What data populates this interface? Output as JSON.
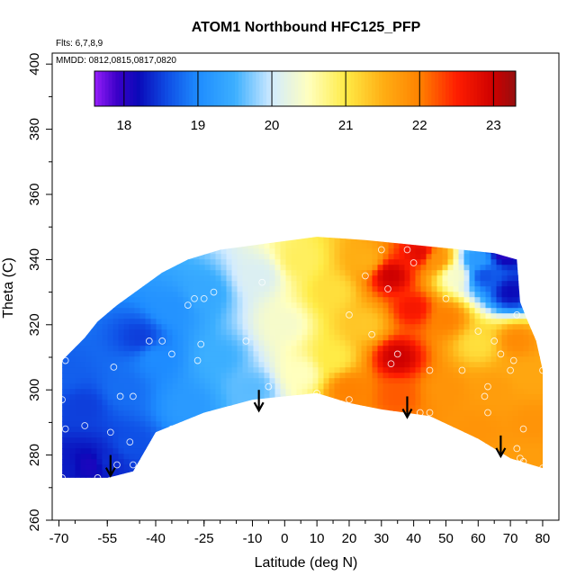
{
  "chart_data": {
    "type": "heatmap",
    "title": "ATOM1 Northbound HFC125_PFP",
    "notes": [
      "Flts: 6,7,8,9",
      "MMDD: 0812,0815,0817,0820"
    ],
    "xlabel": "Latitude (deg N)",
    "ylabel": "Theta (C)",
    "xlim": [
      -70,
      80
    ],
    "ylim": [
      260,
      405
    ],
    "x_ticks": [
      -70,
      -55,
      -40,
      -25,
      -10,
      0,
      10,
      20,
      30,
      40,
      50,
      60,
      70,
      80
    ],
    "x_tick_labels": [
      "-70",
      "-55",
      "-40",
      "-25",
      "-10",
      "0",
      "10",
      "20",
      "30",
      "40",
      "50",
      "60",
      "70",
      "80"
    ],
    "y_ticks": [
      260,
      280,
      300,
      320,
      340,
      360,
      380,
      400
    ],
    "y_tick_labels": [
      "260",
      "280",
      "300",
      "320",
      "340",
      "360",
      "380",
      "400"
    ],
    "colorbar": {
      "range": [
        17.6,
        23.3
      ],
      "ticks": [
        18,
        19,
        20,
        21,
        22,
        23
      ],
      "tick_labels": [
        "18",
        "19",
        "20",
        "21",
        "22",
        "23"
      ],
      "placement": "top"
    },
    "field_boundary": [
      [
        -69,
        273
      ],
      [
        -55,
        273
      ],
      [
        -47,
        275
      ],
      [
        -40,
        287
      ],
      [
        -25,
        293
      ],
      [
        -10,
        297
      ],
      [
        0,
        298
      ],
      [
        10,
        299
      ],
      [
        20,
        296
      ],
      [
        30,
        294
      ],
      [
        45,
        292
      ],
      [
        60,
        285
      ],
      [
        70,
        279
      ],
      [
        80,
        276
      ],
      [
        80,
        306
      ],
      [
        78,
        315
      ],
      [
        75,
        322
      ],
      [
        73,
        327
      ],
      [
        72,
        340
      ],
      [
        65,
        342
      ],
      [
        55,
        343
      ],
      [
        45,
        344
      ],
      [
        25,
        346
      ],
      [
        10,
        347
      ],
      [
        -5,
        345
      ],
      [
        -20,
        343
      ],
      [
        -30,
        340
      ],
      [
        -38,
        336
      ],
      [
        -45,
        331
      ],
      [
        -52,
        326
      ],
      [
        -58,
        321
      ],
      [
        -62,
        316
      ],
      [
        -66,
        312
      ],
      [
        -69,
        309
      ]
    ],
    "field_values": [
      {
        "lat": -69,
        "theta": 276,
        "value": 18.3
      },
      {
        "lat": -60,
        "theta": 277,
        "value": 18.1
      },
      {
        "lat": -55,
        "theta": 278,
        "value": 18.4
      },
      {
        "lat": -48,
        "theta": 283,
        "value": 18.6
      },
      {
        "lat": -62,
        "theta": 295,
        "value": 18.5
      },
      {
        "lat": -69,
        "theta": 305,
        "value": 18.7
      },
      {
        "lat": -50,
        "theta": 300,
        "value": 18.8
      },
      {
        "lat": -45,
        "theta": 316,
        "value": 18.5
      },
      {
        "lat": -40,
        "theta": 310,
        "value": 19.0
      },
      {
        "lat": -35,
        "theta": 325,
        "value": 19.1
      },
      {
        "lat": -30,
        "theta": 295,
        "value": 19.2
      },
      {
        "lat": -25,
        "theta": 330,
        "value": 19.4
      },
      {
        "lat": -20,
        "theta": 310,
        "value": 19.5
      },
      {
        "lat": -10,
        "theta": 300,
        "value": 19.6
      },
      {
        "lat": -8,
        "theta": 335,
        "value": 20.1
      },
      {
        "lat": 0,
        "theta": 320,
        "value": 20.4
      },
      {
        "lat": 5,
        "theta": 305,
        "value": 20.5
      },
      {
        "lat": 5,
        "theta": 340,
        "value": 20.9
      },
      {
        "lat": 15,
        "theta": 330,
        "value": 21.1
      },
      {
        "lat": 15,
        "theta": 310,
        "value": 21.0
      },
      {
        "lat": 20,
        "theta": 300,
        "value": 22.0
      },
      {
        "lat": 25,
        "theta": 320,
        "value": 21.3
      },
      {
        "lat": 25,
        "theta": 340,
        "value": 21.5
      },
      {
        "lat": 33,
        "theta": 335,
        "value": 23.0
      },
      {
        "lat": 35,
        "theta": 310,
        "value": 23.0
      },
      {
        "lat": 40,
        "theta": 325,
        "value": 22.6
      },
      {
        "lat": 35,
        "theta": 298,
        "value": 22.2
      },
      {
        "lat": 42,
        "theta": 342,
        "value": 22.8
      },
      {
        "lat": 47,
        "theta": 340,
        "value": 21.8
      },
      {
        "lat": 50,
        "theta": 322,
        "value": 22.0
      },
      {
        "lat": 50,
        "theta": 300,
        "value": 21.8
      },
      {
        "lat": 53,
        "theta": 335,
        "value": 20.4
      },
      {
        "lat": 60,
        "theta": 340,
        "value": 19.2
      },
      {
        "lat": 62,
        "theta": 335,
        "value": 18.6
      },
      {
        "lat": 68,
        "theta": 342,
        "value": 18.0
      },
      {
        "lat": 70,
        "theta": 330,
        "value": 18.2
      },
      {
        "lat": 60,
        "theta": 314,
        "value": 21.1
      },
      {
        "lat": 65,
        "theta": 300,
        "value": 21.7
      },
      {
        "lat": 75,
        "theta": 305,
        "value": 21.6
      },
      {
        "lat": 72,
        "theta": 315,
        "value": 21.9
      },
      {
        "lat": 77,
        "theta": 290,
        "value": 21.8
      },
      {
        "lat": 60,
        "theta": 288,
        "value": 21.8
      },
      {
        "lat": 75,
        "theta": 278,
        "value": 21.7
      }
    ],
    "sample_points": [
      [
        -68,
        309
      ],
      [
        -69,
        297
      ],
      [
        -68,
        288
      ],
      [
        -69,
        273
      ],
      [
        -62,
        289
      ],
      [
        -58,
        273
      ],
      [
        -54,
        287
      ],
      [
        -52,
        277
      ],
      [
        -48,
        284
      ],
      [
        -47,
        277
      ],
      [
        -53,
        307
      ],
      [
        -51,
        298
      ],
      [
        -47,
        298
      ],
      [
        -42,
        315
      ],
      [
        -38,
        315
      ],
      [
        -35,
        311
      ],
      [
        -35,
        288
      ],
      [
        -30,
        326
      ],
      [
        -28,
        328
      ],
      [
        -25,
        328
      ],
      [
        -22,
        330
      ],
      [
        -27,
        309
      ],
      [
        -26,
        314
      ],
      [
        -20,
        291
      ],
      [
        -15,
        294
      ],
      [
        -12,
        315
      ],
      [
        -7,
        333
      ],
      [
        -5,
        301
      ],
      [
        5,
        297
      ],
      [
        10,
        299
      ],
      [
        20,
        297
      ],
      [
        20,
        323
      ],
      [
        25,
        335
      ],
      [
        27,
        317
      ],
      [
        30,
        343
      ],
      [
        32,
        331
      ],
      [
        33,
        308
      ],
      [
        35,
        311
      ],
      [
        38,
        343
      ],
      [
        40,
        339
      ],
      [
        42,
        293
      ],
      [
        45,
        306
      ],
      [
        45,
        293
      ],
      [
        50,
        328
      ],
      [
        55,
        306
      ],
      [
        60,
        318
      ],
      [
        62,
        298
      ],
      [
        63,
        301
      ],
      [
        63,
        293
      ],
      [
        65,
        315
      ],
      [
        67,
        311
      ],
      [
        70,
        306
      ],
      [
        71,
        309
      ],
      [
        70,
        342
      ],
      [
        72,
        323
      ],
      [
        72,
        282
      ],
      [
        73,
        279
      ],
      [
        74,
        278
      ],
      [
        74,
        288
      ],
      [
        80,
        306
      ],
      [
        80,
        276
      ]
    ],
    "arrows": [
      {
        "lat": -54,
        "theta": 280
      },
      {
        "lat": -8,
        "theta": 300
      },
      {
        "lat": 38,
        "theta": 298
      },
      {
        "lat": 67,
        "theta": 286
      }
    ]
  }
}
